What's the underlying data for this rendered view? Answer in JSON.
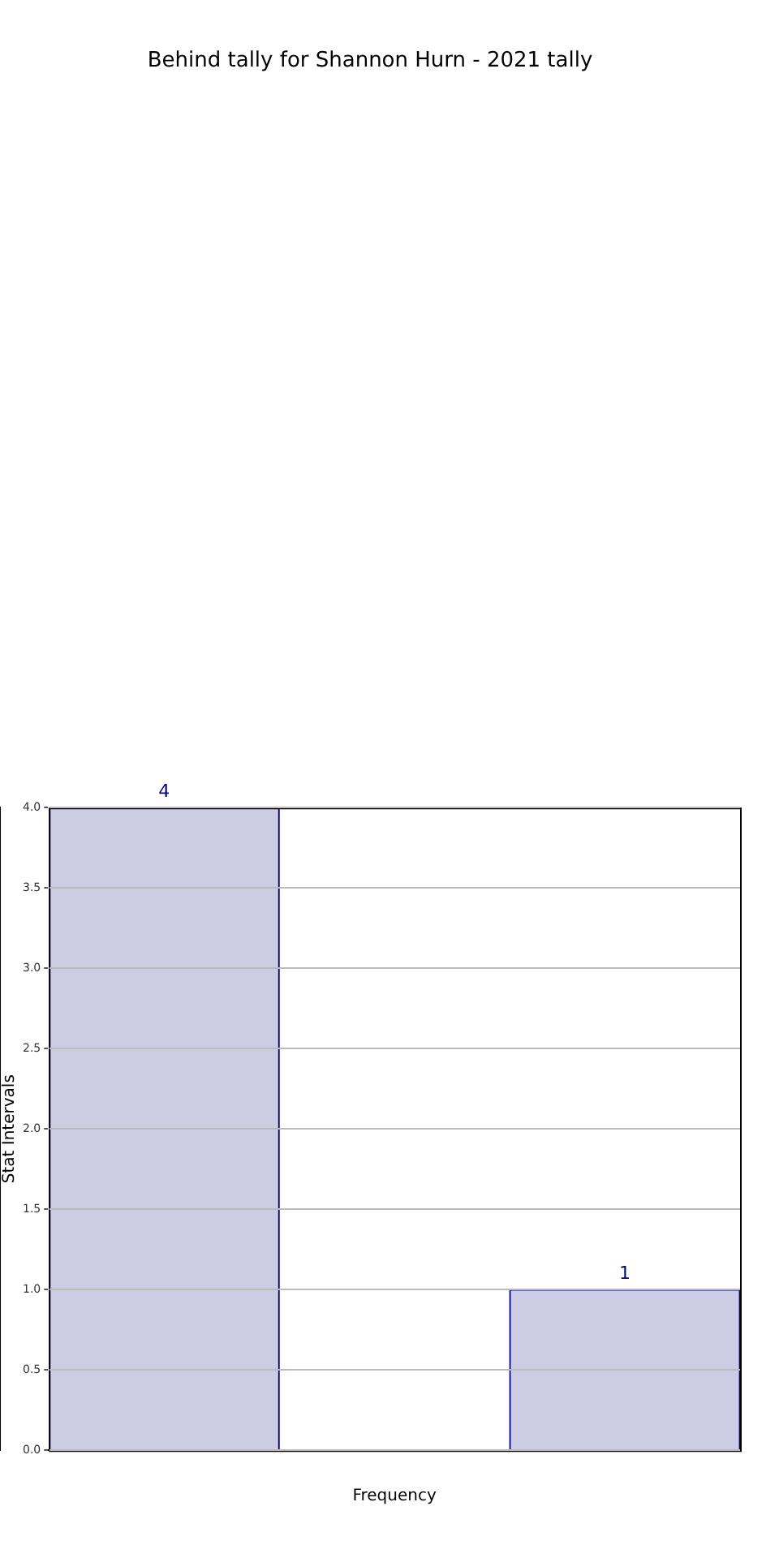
{
  "chart_data": {
    "type": "bar",
    "title": "Behind tally for Shannon Hurn - 2021 tally",
    "xlabel": "Frequency",
    "ylabel": "Stat Intervals",
    "categories": [
      null,
      null,
      null
    ],
    "values": [
      4,
      0,
      1
    ],
    "value_labels": [
      "4",
      null,
      "1"
    ],
    "color": "#cccce4",
    "ylim": [
      0,
      4
    ],
    "yticks": [
      {
        "value": 0,
        "label": "0.0"
      },
      {
        "value": 0.5,
        "label": "0.5"
      },
      {
        "value": 1,
        "label": "1.0"
      },
      {
        "value": 1.5,
        "label": "1.5"
      },
      {
        "value": 2,
        "label": "2.0"
      },
      {
        "value": 2.5,
        "label": "2.5"
      },
      {
        "value": 3,
        "label": "3.0"
      },
      {
        "value": 3.5,
        "label": "3.5"
      },
      {
        "value": 4,
        "label": "4.0"
      }
    ],
    "grid": "y",
    "legend": false
  }
}
